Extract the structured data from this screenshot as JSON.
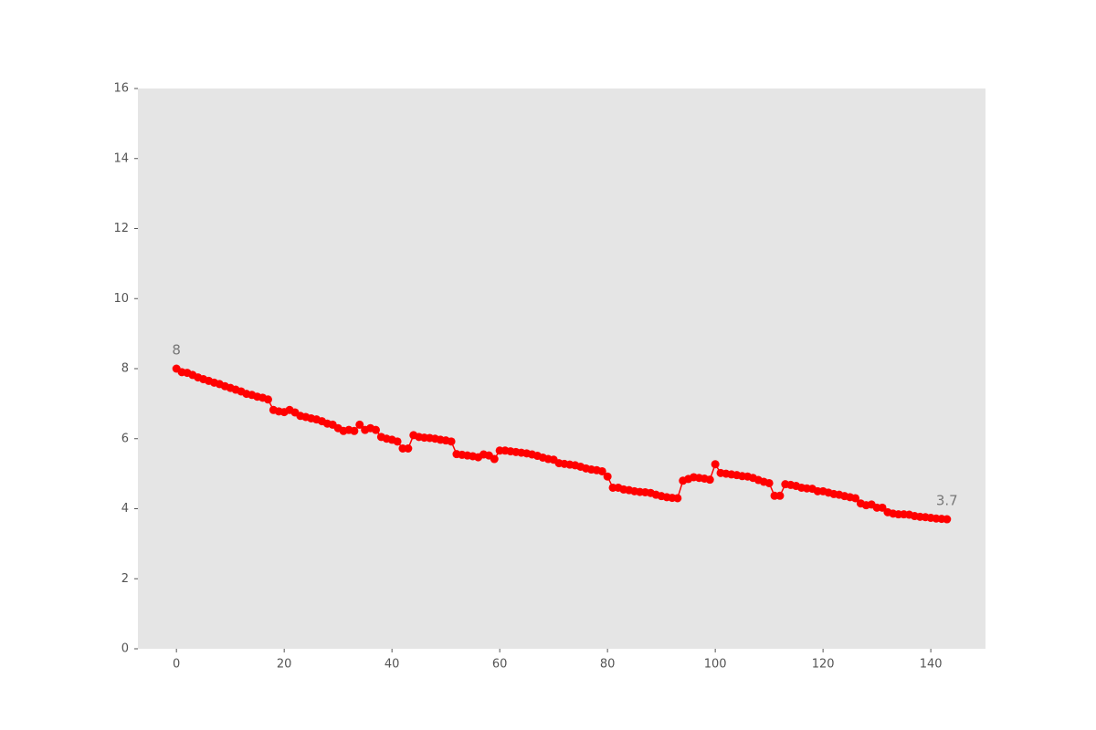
{
  "chart_data": {
    "type": "line",
    "x": [
      0,
      1,
      2,
      3,
      4,
      5,
      6,
      7,
      8,
      9,
      10,
      11,
      12,
      13,
      14,
      15,
      16,
      17,
      18,
      19,
      20,
      21,
      22,
      23,
      24,
      25,
      26,
      27,
      28,
      29,
      30,
      31,
      32,
      33,
      34,
      35,
      36,
      37,
      38,
      39,
      40,
      41,
      42,
      43,
      44,
      45,
      46,
      47,
      48,
      49,
      50,
      51,
      52,
      53,
      54,
      55,
      56,
      57,
      58,
      59,
      60,
      61,
      62,
      63,
      64,
      65,
      66,
      67,
      68,
      69,
      70,
      71,
      72,
      73,
      74,
      75,
      76,
      77,
      78,
      79,
      80,
      81,
      82,
      83,
      84,
      85,
      86,
      87,
      88,
      89,
      90,
      91,
      92,
      93,
      94,
      95,
      96,
      97,
      98,
      99,
      100,
      101,
      102,
      103,
      104,
      105,
      106,
      107,
      108,
      109,
      110,
      111,
      112,
      113,
      114,
      115,
      116,
      117,
      118,
      119,
      120,
      121,
      122,
      123,
      124,
      125,
      126,
      127,
      128,
      129,
      130,
      131,
      132,
      133,
      134,
      135,
      136,
      137,
      138,
      139,
      140,
      141,
      142,
      143
    ],
    "series": [
      {
        "color": "#ff0000",
        "values": [
          8.0,
          7.9,
          7.88,
          7.82,
          7.75,
          7.7,
          7.65,
          7.6,
          7.56,
          7.5,
          7.45,
          7.4,
          7.35,
          7.28,
          7.25,
          7.2,
          7.17,
          7.12,
          6.82,
          6.78,
          6.76,
          6.82,
          6.75,
          6.65,
          6.62,
          6.58,
          6.55,
          6.5,
          6.43,
          6.4,
          6.3,
          6.22,
          6.25,
          6.22,
          6.4,
          6.25,
          6.3,
          6.25,
          6.05,
          6.0,
          5.97,
          5.92,
          5.72,
          5.72,
          6.1,
          6.05,
          6.03,
          6.02,
          6.0,
          5.97,
          5.95,
          5.92,
          5.56,
          5.54,
          5.52,
          5.5,
          5.47,
          5.55,
          5.52,
          5.42,
          5.66,
          5.66,
          5.64,
          5.62,
          5.6,
          5.58,
          5.55,
          5.51,
          5.46,
          5.42,
          5.4,
          5.3,
          5.28,
          5.26,
          5.24,
          5.2,
          5.15,
          5.12,
          5.1,
          5.07,
          4.92,
          4.6,
          4.6,
          4.55,
          4.53,
          4.5,
          4.48,
          4.47,
          4.45,
          4.4,
          4.36,
          4.33,
          4.31,
          4.3,
          4.8,
          4.85,
          4.9,
          4.88,
          4.86,
          4.83,
          5.27,
          5.02,
          5.0,
          4.98,
          4.96,
          4.93,
          4.92,
          4.88,
          4.82,
          4.77,
          4.73,
          4.37,
          4.37,
          4.7,
          4.68,
          4.65,
          4.6,
          4.58,
          4.57,
          4.5,
          4.5,
          4.46,
          4.42,
          4.4,
          4.36,
          4.33,
          4.3,
          4.15,
          4.1,
          4.12,
          4.03,
          4.03,
          3.9,
          3.86,
          3.84,
          3.84,
          3.83,
          3.79,
          3.77,
          3.76,
          3.74,
          3.72,
          3.71,
          3.7
        ]
      }
    ],
    "annotations": [
      {
        "label": "8",
        "x": 0,
        "value": 8
      },
      {
        "label": "3.7",
        "x": 143,
        "value": 3.7
      }
    ],
    "xlim": [
      -7.15,
      150.15
    ],
    "xticks": [
      0,
      20,
      40,
      60,
      80,
      100,
      120,
      140
    ],
    "ylim": [
      0,
      16
    ],
    "yticks": [
      0,
      2,
      4,
      6,
      8,
      10,
      12,
      14,
      16
    ],
    "grid": false
  }
}
